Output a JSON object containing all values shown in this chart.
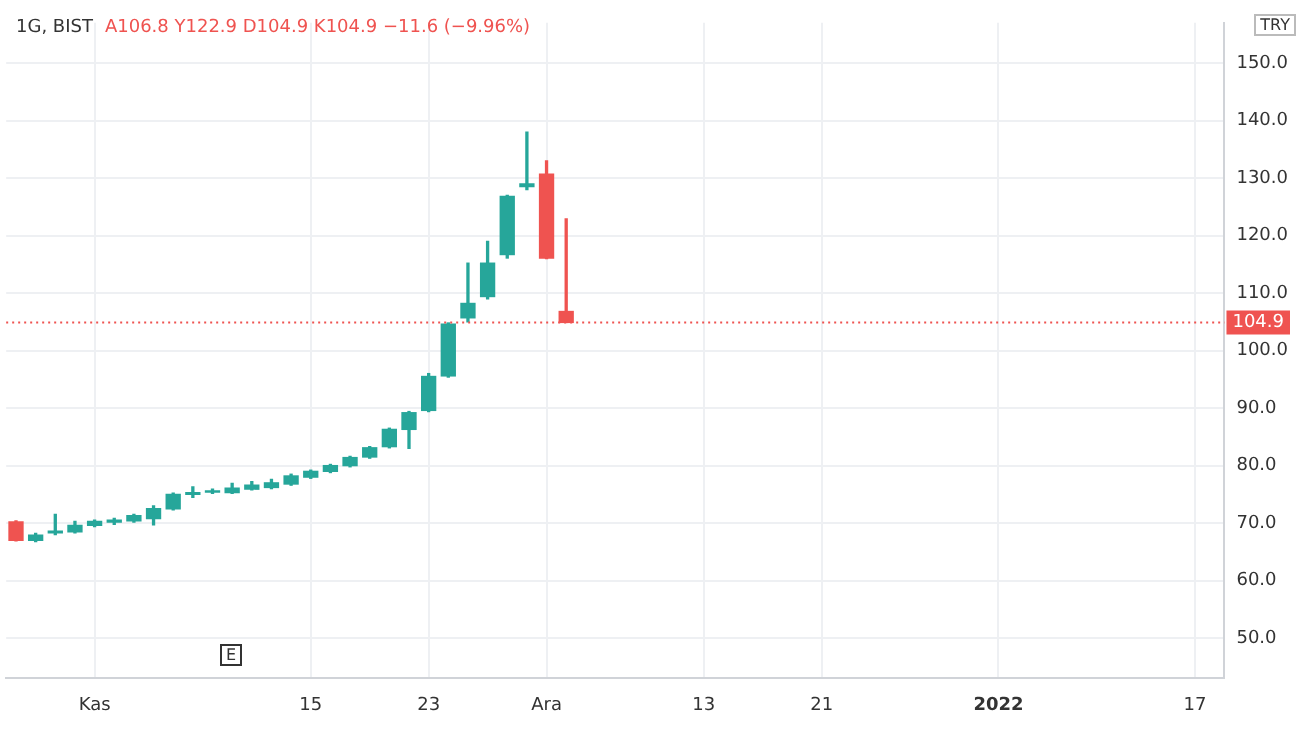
{
  "chart_data": {
    "type": "candlestick",
    "title": "1G, BIST",
    "subtitle": "A106.8 Y122.9 D104.9 K104.9 −11.6 (−9.96%)",
    "annotations": [
      "TRY",
      "E"
    ],
    "categories": [
      null,
      null,
      null,
      null,
      "Kas",
      null,
      null,
      null,
      null,
      null,
      null,
      null,
      null,
      null,
      null,
      "15",
      null,
      null,
      null,
      null,
      null,
      "23",
      null,
      null,
      null,
      null,
      null,
      "Ara",
      null,
      null,
      null,
      null,
      null,
      null,
      null,
      "13",
      null,
      null,
      null,
      null,
      null,
      "21",
      null,
      null,
      null,
      null,
      null,
      null,
      null,
      null,
      "2022",
      null,
      null,
      null,
      null,
      null,
      null,
      null,
      null,
      null,
      "17",
      null
    ],
    "ohlc": [
      [
        70.2,
        70.4,
        66.9,
        67.0
      ],
      [
        67.0,
        68.2,
        66.8,
        67.9
      ],
      [
        68.3,
        71.5,
        68.0,
        68.6
      ],
      [
        68.5,
        70.3,
        68.3,
        69.6
      ],
      [
        69.6,
        70.5,
        69.4,
        70.3
      ],
      [
        70.2,
        70.8,
        69.8,
        70.5
      ],
      [
        70.4,
        71.5,
        70.2,
        71.3
      ],
      [
        70.8,
        73.0,
        69.7,
        72.5
      ],
      [
        72.5,
        75.2,
        72.3,
        75.0
      ],
      [
        75.0,
        76.3,
        74.5,
        75.3
      ],
      [
        75.4,
        75.9,
        75.2,
        75.6
      ],
      [
        75.3,
        76.9,
        75.2,
        76.1
      ],
      [
        75.9,
        77.2,
        75.8,
        76.6
      ],
      [
        76.2,
        77.6,
        76.0,
        77.0
      ],
      [
        76.8,
        78.5,
        76.6,
        78.2
      ],
      [
        78.0,
        79.2,
        77.8,
        79.0
      ],
      [
        79.0,
        80.2,
        78.8,
        80.0
      ],
      [
        80.0,
        81.6,
        79.8,
        81.4
      ],
      [
        81.5,
        83.3,
        81.3,
        83.1
      ],
      [
        83.3,
        86.5,
        83.1,
        86.3
      ],
      [
        86.3,
        89.4,
        83.0,
        89.2
      ],
      [
        89.6,
        96.0,
        89.4,
        95.5
      ],
      [
        95.6,
        104.8,
        95.4,
        104.6
      ],
      [
        105.7,
        115.2,
        105.0,
        108.2
      ],
      [
        109.4,
        119.0,
        109.0,
        115.2
      ],
      [
        116.7,
        127.0,
        116.1,
        126.8
      ],
      [
        128.5,
        138.0,
        128.0,
        129.0
      ],
      [
        130.7,
        133.0,
        116.0,
        116.1
      ],
      [
        106.8,
        122.9,
        104.9,
        104.9
      ],
      null,
      null,
      null,
      null,
      null,
      null,
      null,
      null,
      null,
      null,
      null,
      null,
      null,
      null,
      null,
      null,
      null,
      null,
      null,
      null,
      null,
      null,
      null,
      null,
      null,
      null,
      null,
      null,
      null,
      null,
      null,
      null,
      null
    ],
    "colors": [
      "#ef5350",
      "#26a69a",
      "#26a69a",
      "#26a69a",
      "#26a69a",
      "#26a69a",
      "#26a69a",
      "#26a69a",
      "#26a69a",
      "#26a69a",
      "#26a69a",
      "#26a69a",
      "#26a69a",
      "#26a69a",
      "#26a69a",
      "#26a69a",
      "#26a69a",
      "#26a69a",
      "#26a69a",
      "#26a69a",
      "#26a69a",
      "#26a69a",
      "#26a69a",
      "#26a69a",
      "#26a69a",
      "#26a69a",
      "#26a69a",
      "#ef5350",
      "#ef5350",
      null,
      null,
      null,
      null,
      null,
      null,
      null,
      null,
      null,
      null,
      null,
      null,
      null,
      null,
      null,
      null,
      null,
      null,
      null,
      null,
      null,
      null,
      null,
      null,
      null,
      null,
      null,
      null,
      null,
      null,
      null,
      null,
      null
    ],
    "ylim": [
      43,
      157
    ],
    "yticks": [
      {
        "value": 50,
        "label": "50.0"
      },
      {
        "value": 60,
        "label": "60.0"
      },
      {
        "value": 70,
        "label": "70.0"
      },
      {
        "value": 80,
        "label": "80.0"
      },
      {
        "value": 90,
        "label": "90.0"
      },
      {
        "value": 100,
        "label": "100.0"
      },
      {
        "value": 110,
        "label": "110.0"
      },
      {
        "value": 120,
        "label": "120.0"
      },
      {
        "value": 130,
        "label": "130.0"
      },
      {
        "value": 140,
        "label": "140.0"
      },
      {
        "value": 150,
        "label": "150.0"
      }
    ],
    "ref_lines": [
      {
        "axis": "y",
        "value": 104.9,
        "label": "104.9",
        "color": "#ef5350",
        "line_style": "dotted"
      }
    ],
    "grid": true,
    "legend": false
  }
}
